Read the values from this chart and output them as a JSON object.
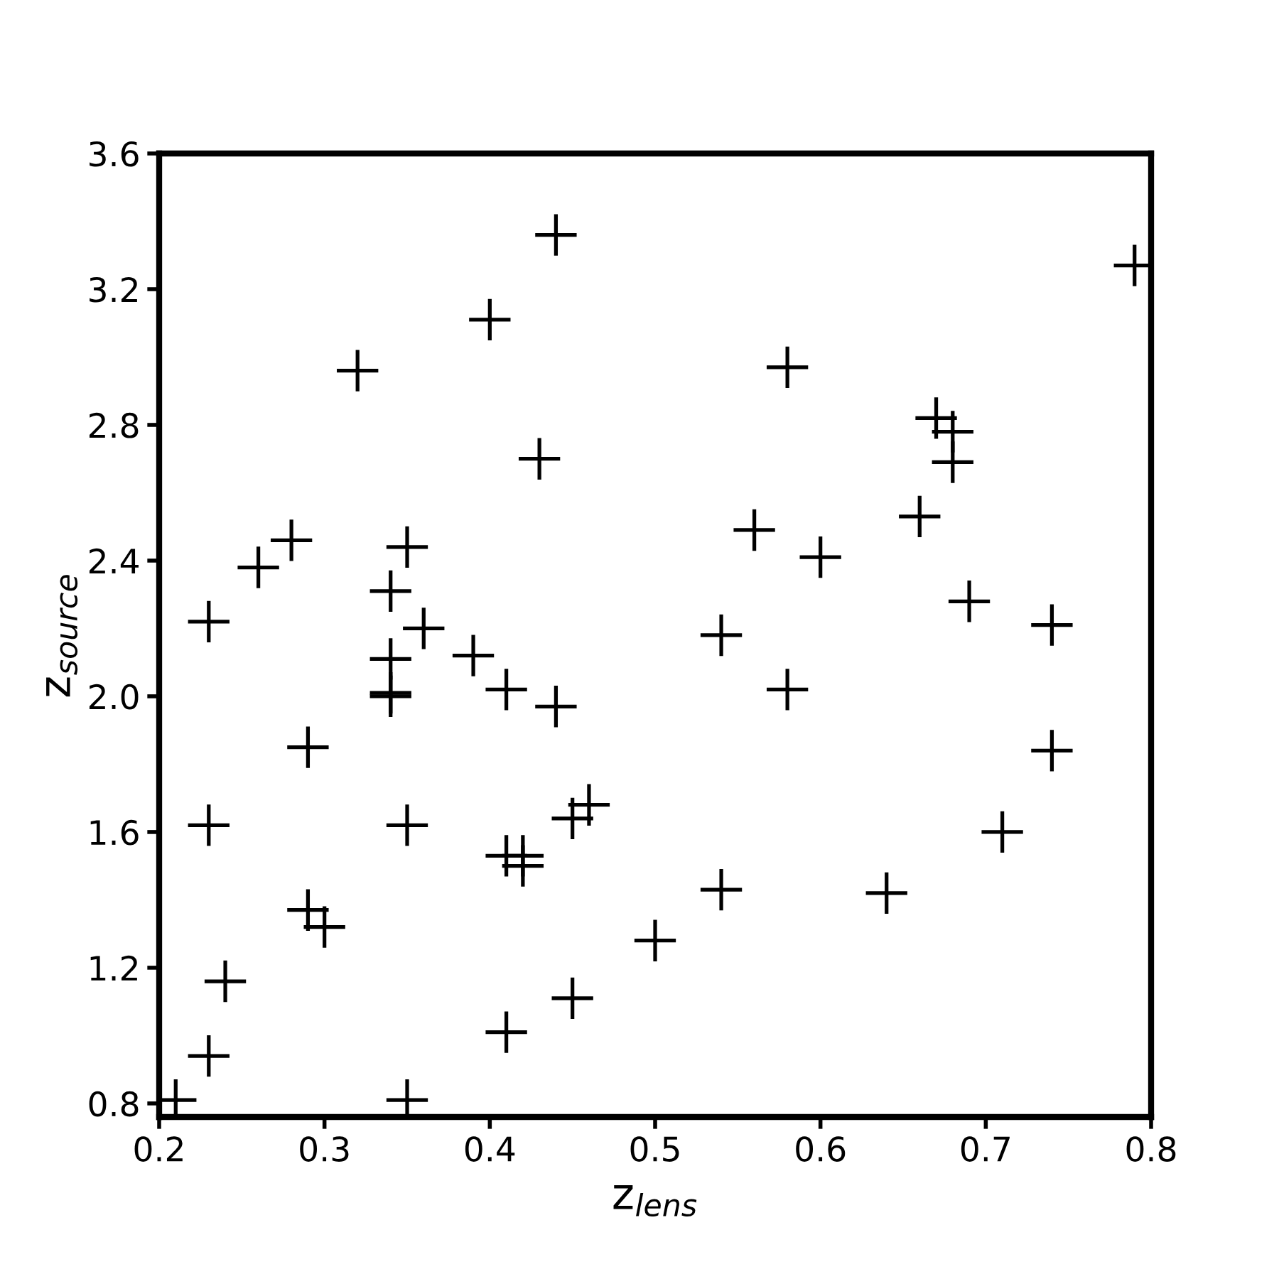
{
  "chart_data": {
    "type": "scatter",
    "xlabel": "z$_{lens}$",
    "ylabel": "z$_{source}$",
    "x": [
      0.21,
      0.23,
      0.24,
      0.29,
      0.3,
      0.23,
      0.29,
      0.23,
      0.26,
      0.28,
      0.32,
      0.34,
      0.34,
      0.34,
      0.34,
      0.35,
      0.36,
      0.35,
      0.35,
      0.39,
      0.4,
      0.41,
      0.41,
      0.42,
      0.42,
      0.41,
      0.43,
      0.44,
      0.44,
      0.45,
      0.46,
      0.45,
      0.5,
      0.54,
      0.54,
      0.56,
      0.58,
      0.58,
      0.6,
      0.64,
      0.66,
      0.67,
      0.68,
      0.68,
      0.69,
      0.71,
      0.74,
      0.74,
      0.79
    ],
    "series": [
      {
        "color": "#000000",
        "values": [
          0.81,
          0.94,
          1.16,
          1.37,
          1.32,
          1.62,
          1.85,
          2.22,
          2.38,
          2.46,
          2.96,
          2.31,
          2.11,
          2.01,
          2.0,
          2.44,
          2.2,
          1.62,
          0.81,
          2.12,
          3.11,
          2.02,
          1.53,
          1.53,
          1.5,
          1.01,
          2.7,
          3.36,
          1.97,
          1.64,
          1.68,
          1.11,
          1.28,
          2.18,
          1.43,
          2.49,
          2.97,
          2.02,
          2.41,
          1.42,
          2.53,
          2.82,
          2.78,
          2.69,
          2.28,
          1.6,
          2.21,
          1.84,
          3.27
        ]
      }
    ],
    "xlim": [
      0.2,
      0.8
    ],
    "ylim": [
      0.76,
      3.6
    ],
    "xticks": [
      0.2,
      0.3,
      0.4,
      0.5,
      0.6,
      0.7,
      0.8
    ],
    "yticks": [
      0.8,
      1.2,
      1.6,
      {
        "value": 2.0,
        "label": "2.0"
      },
      2.4,
      2.8,
      3.2,
      3.6
    ],
    "marker": "cross",
    "grid": false,
    "legend": false
  }
}
